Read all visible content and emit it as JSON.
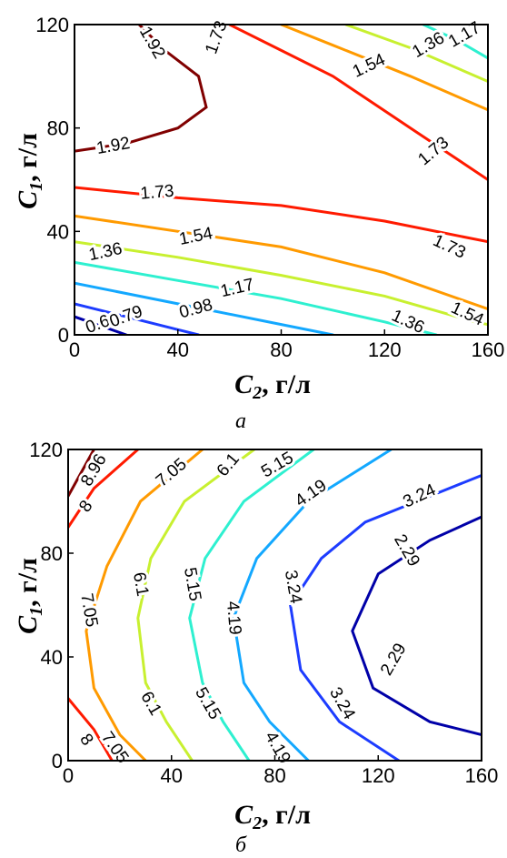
{
  "chart_data": [
    {
      "type": "contour",
      "panel_label": "а",
      "xlabel": {
        "main": "C",
        "sub": "2",
        "unit": ", г/л"
      },
      "ylabel": {
        "main": "C",
        "sub": "1",
        "unit": ", г/л"
      },
      "xlim": [
        0,
        160
      ],
      "ylim": [
        0,
        120
      ],
      "xticks": [
        "0",
        "40",
        "80",
        "120",
        "160"
      ],
      "yticks": [
        "0",
        "40",
        "80",
        "120"
      ],
      "levels": [
        {
          "value": "0.6",
          "color": "#0000a8",
          "lines": [
            [
              [
                0,
                7
              ],
              [
                20,
                0
              ]
            ]
          ],
          "labels": [
            {
              "text": "0.6",
              "x": 9,
              "y": 4,
              "angle": 20
            }
          ]
        },
        {
          "value": "0.79",
          "color": "#1d3cff",
          "lines": [
            [
              [
                0,
                12
              ],
              [
                20,
                7
              ],
              [
                40,
                2
              ],
              [
                48,
                0
              ]
            ]
          ],
          "labels": [
            {
              "text": "0.79",
              "x": 20,
              "y": 7,
              "angle": 20
            }
          ]
        },
        {
          "value": "0.98",
          "color": "#13a8ff",
          "lines": [
            [
              [
                0,
                20
              ],
              [
                40,
                12
              ],
              [
                80,
                4
              ],
              [
                100,
                0
              ]
            ]
          ],
          "labels": [
            {
              "text": "0.98",
              "x": 47,
              "y": 10,
              "angle": 15
            }
          ]
        },
        {
          "value": "1.17",
          "color": "#2ef0d0",
          "lines": [
            [
              [
                0,
                28
              ],
              [
                40,
                21
              ],
              [
                80,
                14
              ],
              [
                120,
                5
              ],
              [
                140,
                0
              ]
            ]
          ],
          "labels": [
            {
              "text": "1.17",
              "x": 63,
              "y": 18,
              "angle": 13
            }
          ]
        },
        {
          "value": "1.36",
          "color": "#c8f030",
          "lines": [
            [
              [
                0,
                36
              ],
              [
                40,
                30
              ],
              [
                80,
                23
              ],
              [
                120,
                15
              ],
              [
                155,
                5
              ],
              [
                160,
                4
              ]
            ]
          ],
          "labels": [
            {
              "text": "1.36",
              "x": 12,
              "y": 32,
              "angle": 12
            }
          ]
        },
        {
          "value": "1.54",
          "color": "#ff9a00",
          "lines": [
            [
              [
                0,
                46
              ],
              [
                40,
                40
              ],
              [
                80,
                34
              ],
              [
                120,
                24
              ],
              [
                160,
                10
              ]
            ]
          ],
          "labels": [
            {
              "text": "1.54",
              "x": 47,
              "y": 38,
              "angle": 11
            }
          ]
        },
        {
          "value": "1.73",
          "color": "#ff1a00",
          "lines": [
            [
              [
                0,
                57
              ],
              [
                40,
                53
              ],
              [
                80,
                50
              ],
              [
                120,
                44
              ],
              [
                160,
                36
              ]
            ]
          ],
          "labels": [
            {
              "text": "1.73",
              "x": 32,
              "y": 55,
              "angle": 5
            }
          ]
        },
        {
          "value": "1.92",
          "color": "#800000",
          "lines": [
            [
              [
                0,
                71
              ],
              [
                20,
                74
              ],
              [
                40,
                80
              ],
              [
                51,
                88
              ],
              [
                48,
                100
              ],
              [
                35,
                110
              ],
              [
                25,
                120
              ]
            ]
          ],
          "labels": [
            {
              "text": "1.92",
              "x": 15,
              "y": 73,
              "angle": 10
            }
          ]
        }
      ],
      "extra_lines": [
        {
          "color": "#ff1a00",
          "points": [
            [
              60,
              120
            ],
            [
              80,
              110
            ],
            [
              100,
              100
            ],
            [
              130,
              80
            ],
            [
              160,
              60
            ]
          ]
        },
        {
          "color": "#ff9a00",
          "points": [
            [
              80,
              120
            ],
            [
              100,
              112
            ],
            [
              130,
              100
            ],
            [
              160,
              87
            ]
          ]
        },
        {
          "color": "#c8f030",
          "points": [
            [
              105,
              120
            ],
            [
              130,
              111
            ],
            [
              160,
              98
            ]
          ]
        },
        {
          "color": "#2ef0d0",
          "points": [
            [
              135,
              120
            ],
            [
              148,
              114
            ],
            [
              160,
              107
            ]
          ]
        }
      ],
      "extra_labels": [
        {
          "text": "1.73",
          "x": 55,
          "y": 115,
          "angle": 70
        },
        {
          "text": "1.54",
          "x": 114,
          "y": 104,
          "angle": 25
        },
        {
          "text": "1.36",
          "x": 137,
          "y": 112,
          "angle": 30
        },
        {
          "text": "1.17",
          "x": 151,
          "y": 116,
          "angle": 30
        },
        {
          "text": "1.73",
          "x": 139,
          "y": 71,
          "angle": 40
        },
        {
          "text": "1.92",
          "x": 30,
          "y": 113,
          "angle": -60
        },
        {
          "text": "1.73",
          "x": 145,
          "y": 34,
          "angle": -25
        },
        {
          "text": "1.54",
          "x": 152,
          "y": 8,
          "angle": -25
        },
        {
          "text": "1.36",
          "x": 129,
          "y": 5,
          "angle": -25
        }
      ]
    },
    {
      "type": "contour",
      "panel_label": "б",
      "xlabel": {
        "main": "C",
        "sub": "2",
        "unit": ", г/л"
      },
      "ylabel": {
        "main": "C",
        "sub": "1",
        "unit": ", г/л"
      },
      "xlim": [
        0,
        160
      ],
      "ylim": [
        0,
        120
      ],
      "xticks": [
        "0",
        "40",
        "80",
        "120",
        "160"
      ],
      "yticks": [
        "0",
        "40",
        "80",
        "120"
      ],
      "levels": [
        {
          "value": "8.96",
          "color": "#800000",
          "lines": [
            [
              [
                0,
                102
              ],
              [
                10,
                120
              ]
            ]
          ],
          "labels": [
            {
              "text": "8.96",
              "x": 10,
              "y": 112,
              "angle": 60
            }
          ]
        },
        {
          "value": "8",
          "color": "#ff1a00",
          "lines": [
            [
              [
                27,
                120
              ],
              [
                10,
                105
              ],
              [
                0,
                90
              ]
            ],
            [
              [
                0,
                24
              ],
              [
                10,
                12
              ],
              [
                17,
                0
              ]
            ]
          ],
          "labels": [
            {
              "text": "8",
              "x": 7,
              "y": 98,
              "angle": 55
            },
            {
              "text": "8",
              "x": 7,
              "y": 8,
              "angle": -55
            }
          ]
        },
        {
          "value": "7.05",
          "color": "#ff9a00",
          "lines": [
            [
              [
                52,
                120
              ],
              [
                28,
                100
              ],
              [
                15,
                75
              ],
              [
                7,
                50
              ],
              [
                10,
                28
              ],
              [
                20,
                10
              ],
              [
                30,
                0
              ]
            ]
          ],
          "labels": [
            {
              "text": "7.05",
              "x": 40,
              "y": 111,
              "angle": 40
            },
            {
              "text": "7.05",
              "x": 8,
              "y": 58,
              "angle": -80
            },
            {
              "text": "7.05",
              "x": 18,
              "y": 5,
              "angle": -55
            }
          ]
        },
        {
          "value": "6.1",
          "color": "#c8f030",
          "lines": [
            [
              [
                72,
                120
              ],
              [
                45,
                100
              ],
              [
                32,
                78
              ],
              [
                27,
                55
              ],
              [
                30,
                30
              ],
              [
                38,
                15
              ],
              [
                48,
                0
              ]
            ]
          ],
          "labels": [
            {
              "text": "6.1",
              "x": 62,
              "y": 114,
              "angle": 50
            },
            {
              "text": "6.1",
              "x": 28,
              "y": 68,
              "angle": -80
            },
            {
              "text": "6.1",
              "x": 32,
              "y": 22,
              "angle": -60
            }
          ]
        },
        {
          "value": "5.15",
          "color": "#2ef0d0",
          "lines": [
            [
              [
                95,
                120
              ],
              [
                68,
                100
              ],
              [
                53,
                78
              ],
              [
                47,
                55
              ],
              [
                52,
                30
              ],
              [
                60,
                15
              ],
              [
                70,
                0
              ]
            ]
          ],
          "labels": [
            {
              "text": "5.15",
              "x": 81,
              "y": 114,
              "angle": 30
            },
            {
              "text": "5.15",
              "x": 48,
              "y": 68,
              "angle": -80
            },
            {
              "text": "5.15",
              "x": 54,
              "y": 22,
              "angle": -60
            }
          ]
        },
        {
          "value": "4.19",
          "color": "#13a8ff",
          "lines": [
            [
              [
                125,
                120
              ],
              [
                93,
                100
              ],
              [
                73,
                78
              ],
              [
                64,
                55
              ],
              [
                68,
                30
              ],
              [
                78,
                15
              ],
              [
                93,
                0
              ]
            ]
          ],
          "labels": [
            {
              "text": "4.19",
              "x": 94,
              "y": 103,
              "angle": 35
            },
            {
              "text": "4.19",
              "x": 64,
              "y": 55,
              "angle": -85
            },
            {
              "text": "4.19",
              "x": 81,
              "y": 5,
              "angle": -60
            }
          ]
        },
        {
          "value": "3.24",
          "color": "#1d3cff",
          "lines": [
            [
              [
                160,
                110
              ],
              [
                135,
                100
              ],
              [
                115,
                92
              ],
              [
                98,
                78
              ],
              [
                86,
                60
              ],
              [
                90,
                35
              ],
              [
                105,
                15
              ],
              [
                128,
                0
              ]
            ]
          ],
          "labels": [
            {
              "text": "3.24",
              "x": 136,
              "y": 102,
              "angle": 25
            },
            {
              "text": "3.24",
              "x": 87,
              "y": 67,
              "angle": -80
            },
            {
              "text": "3.24",
              "x": 106,
              "y": 22,
              "angle": -60
            }
          ]
        },
        {
          "value": "2.29",
          "color": "#0000a8",
          "lines": [
            [
              [
                160,
                94
              ],
              [
                140,
                85
              ],
              [
                120,
                72
              ],
              [
                110,
                50
              ],
              [
                118,
                28
              ],
              [
                140,
                15
              ],
              [
                160,
                10
              ]
            ]
          ],
          "labels": [
            {
              "text": "2.29",
              "x": 131,
              "y": 81,
              "angle": -60
            },
            {
              "text": "2.29",
              "x": 126,
              "y": 39,
              "angle": 60
            }
          ]
        }
      ],
      "extra_lines": [],
      "extra_labels": []
    }
  ]
}
